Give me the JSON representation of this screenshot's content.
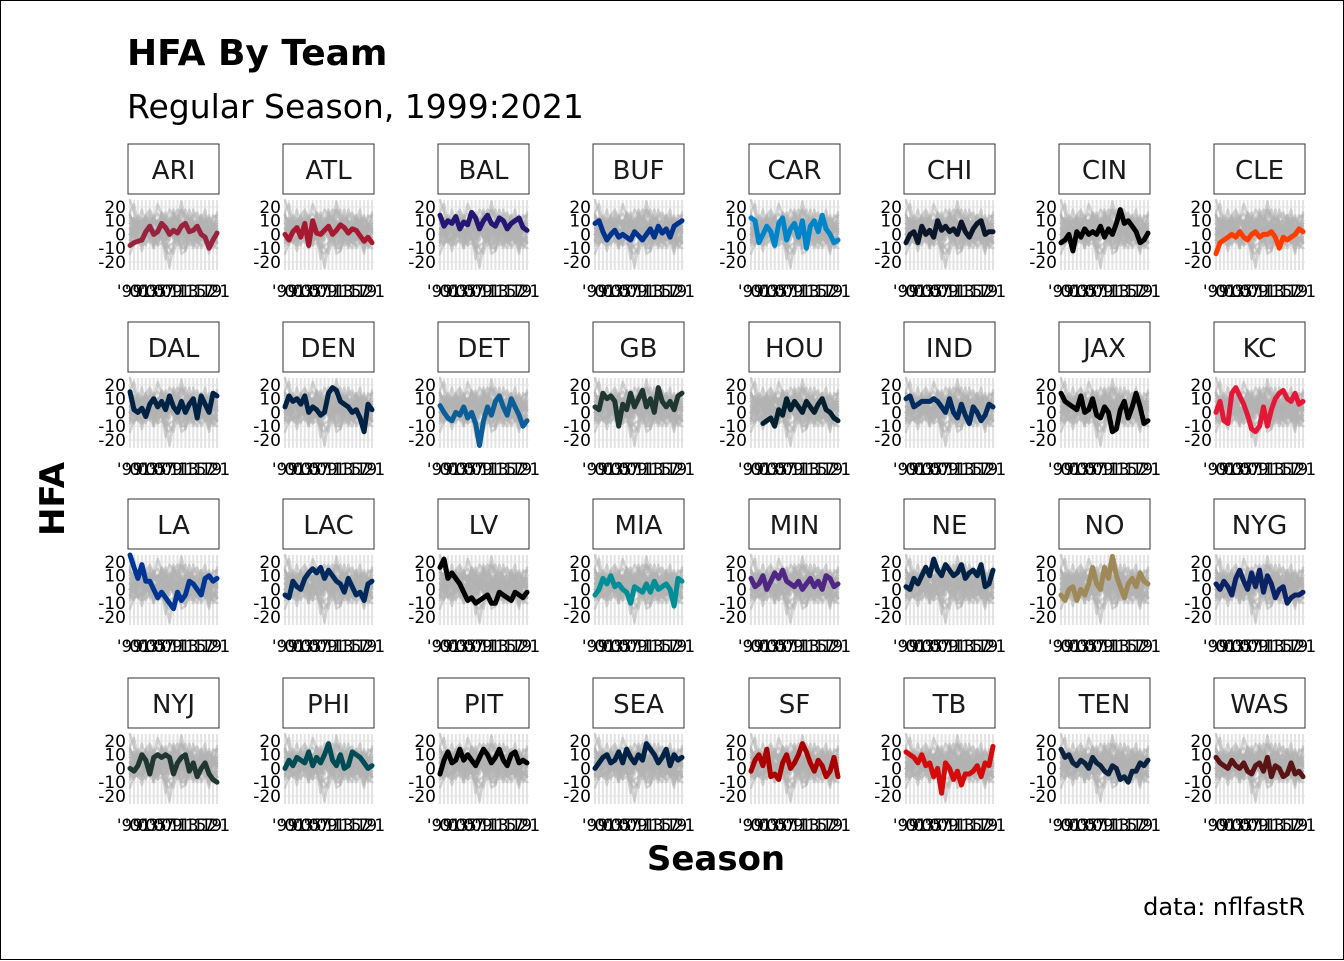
{
  "chart_data": {
    "type": "line",
    "title": "HFA By Team",
    "subtitle": "Regular Season, 1999:2021",
    "xlabel": "Season",
    "ylabel": "HFA",
    "caption": "data: nflfastR",
    "ylim": [
      -20,
      25
    ],
    "y_ticks": [
      "20",
      "10",
      "0",
      "-10",
      "-20"
    ],
    "y_tick_values": [
      20,
      10,
      0,
      -10,
      -20
    ],
    "x_ticks": [
      "'99",
      "'01",
      "'03",
      "'05",
      "'07",
      "'09",
      "'11",
      "'13",
      "'15",
      "'17",
      "'19",
      "'21"
    ],
    "x_tick_values": [
      1999,
      2001,
      2003,
      2005,
      2007,
      2009,
      2011,
      2013,
      2015,
      2017,
      2019,
      2021
    ],
    "seasons": [
      1999,
      2000,
      2001,
      2002,
      2003,
      2004,
      2005,
      2006,
      2007,
      2008,
      2009,
      2010,
      2011,
      2012,
      2013,
      2014,
      2015,
      2016,
      2017,
      2018,
      2019,
      2020,
      2021
    ],
    "background_series_color": "#b3b3b3",
    "grid": true,
    "legend": "none",
    "facets": [
      {
        "team": "ARI",
        "color": "#97233F",
        "values": [
          -8,
          -6,
          -5,
          -4,
          2,
          6,
          0,
          2,
          8,
          5,
          0,
          3,
          1,
          6,
          8,
          2,
          3,
          6,
          0,
          -2,
          -10,
          -4,
          1
        ]
      },
      {
        "team": "ATL",
        "color": "#A71930",
        "values": [
          0,
          -4,
          2,
          5,
          -2,
          8,
          -8,
          10,
          1,
          0,
          3,
          6,
          0,
          3,
          7,
          5,
          1,
          4,
          3,
          -1,
          -5,
          -2,
          -6
        ]
      },
      {
        "team": "BAL",
        "color": "#241773",
        "values": [
          14,
          6,
          10,
          8,
          13,
          4,
          9,
          7,
          16,
          12,
          4,
          10,
          14,
          8,
          6,
          12,
          10,
          4,
          8,
          10,
          12,
          5,
          3
        ]
      },
      {
        "team": "BUF",
        "color": "#00338D",
        "values": [
          8,
          10,
          2,
          -4,
          0,
          3,
          -2,
          0,
          -2,
          -4,
          2,
          -1,
          -4,
          0,
          4,
          -2,
          6,
          1,
          4,
          -2,
          6,
          8,
          10
        ]
      },
      {
        "team": "CAR",
        "color": "#0085CA",
        "values": [
          12,
          10,
          -6,
          0,
          6,
          2,
          -8,
          8,
          12,
          -4,
          4,
          8,
          -2,
          10,
          -10,
          6,
          10,
          2,
          14,
          4,
          0,
          -6,
          -4
        ]
      },
      {
        "team": "CHI",
        "color": "#0B162A",
        "values": [
          -6,
          0,
          2,
          -6,
          6,
          0,
          3,
          -2,
          10,
          3,
          6,
          2,
          4,
          0,
          9,
          2,
          -2,
          4,
          8,
          10,
          0,
          2,
          2
        ]
      },
      {
        "team": "CIN",
        "color": "#000000",
        "values": [
          -6,
          -4,
          0,
          -12,
          2,
          -2,
          4,
          0,
          2,
          0,
          6,
          -2,
          4,
          0,
          8,
          18,
          8,
          10,
          6,
          2,
          -6,
          -4,
          1
        ]
      },
      {
        "team": "CLE",
        "color": "#FF3C00",
        "values": [
          -14,
          -6,
          -4,
          -2,
          0,
          -2,
          2,
          -2,
          -4,
          0,
          2,
          -2,
          0,
          0,
          2,
          -2,
          -10,
          -2,
          -4,
          -2,
          0,
          4,
          2
        ]
      },
      {
        "team": "DAL",
        "color": "#002244",
        "values": [
          15,
          2,
          0,
          3,
          -3,
          6,
          10,
          4,
          8,
          2,
          12,
          4,
          0,
          8,
          0,
          6,
          10,
          -4,
          12,
          6,
          0,
          14,
          12
        ]
      },
      {
        "team": "DEN",
        "color": "#002244",
        "values": [
          4,
          12,
          8,
          10,
          6,
          12,
          0,
          4,
          2,
          -2,
          0,
          14,
          18,
          16,
          8,
          6,
          4,
          0,
          2,
          -4,
          -14,
          6,
          2
        ]
      },
      {
        "team": "DET",
        "color": "#0B5E98",
        "values": [
          5,
          0,
          -4,
          -6,
          0,
          -2,
          4,
          -4,
          0,
          -8,
          -24,
          -6,
          4,
          -2,
          8,
          12,
          4,
          -2,
          10,
          4,
          -2,
          -10,
          -6
        ]
      },
      {
        "team": "GB",
        "color": "#203731",
        "values": [
          4,
          2,
          14,
          10,
          12,
          8,
          -10,
          6,
          2,
          14,
          4,
          10,
          16,
          4,
          10,
          0,
          18,
          8,
          4,
          8,
          2,
          12,
          14
        ]
      },
      {
        "team": "HOU",
        "color": "#03202F",
        "values": [
          null,
          null,
          null,
          -8,
          -6,
          -4,
          -10,
          2,
          -2,
          10,
          2,
          8,
          4,
          0,
          8,
          4,
          0,
          6,
          10,
          2,
          0,
          -4,
          -6
        ]
      },
      {
        "team": "IND",
        "color": "#002C5F",
        "values": [
          10,
          12,
          4,
          6,
          8,
          8,
          8,
          10,
          8,
          4,
          0,
          10,
          0,
          -4,
          6,
          -2,
          -8,
          4,
          0,
          -6,
          -2,
          6,
          4
        ]
      },
      {
        "team": "JAX",
        "color": "#000000",
        "values": [
          14,
          8,
          6,
          4,
          2,
          12,
          0,
          2,
          10,
          -2,
          -4,
          4,
          0,
          -14,
          -12,
          2,
          8,
          -4,
          4,
          14,
          4,
          -8,
          -6
        ]
      },
      {
        "team": "KC",
        "color": "#E31837",
        "values": [
          0,
          8,
          -6,
          -8,
          14,
          18,
          12,
          6,
          -2,
          -12,
          -14,
          -10,
          4,
          -10,
          2,
          10,
          14,
          16,
          10,
          8,
          14,
          6,
          8
        ]
      },
      {
        "team": "LA",
        "color": "#003594",
        "values": [
          25,
          16,
          8,
          18,
          6,
          6,
          0,
          -6,
          -2,
          -6,
          -10,
          -14,
          -2,
          -8,
          -4,
          6,
          4,
          0,
          -4,
          8,
          10,
          6,
          8
        ]
      },
      {
        "team": "LAC",
        "color": "#002A5E",
        "values": [
          -4,
          -6,
          6,
          2,
          0,
          8,
          12,
          15,
          12,
          16,
          8,
          14,
          10,
          6,
          4,
          -2,
          8,
          2,
          -4,
          -2,
          -8,
          4,
          6
        ]
      },
      {
        "team": "LV",
        "color": "#000000",
        "values": [
          16,
          22,
          8,
          12,
          8,
          4,
          -2,
          -8,
          -6,
          -10,
          -8,
          -6,
          -4,
          -10,
          -10,
          -2,
          -4,
          -6,
          -8,
          -2,
          -4,
          -6,
          -2
        ]
      },
      {
        "team": "MIA",
        "color": "#008E97",
        "values": [
          -4,
          0,
          8,
          4,
          10,
          2,
          4,
          0,
          -2,
          -10,
          2,
          0,
          -2,
          4,
          -2,
          6,
          0,
          2,
          4,
          0,
          -12,
          8,
          6
        ]
      },
      {
        "team": "MIN",
        "color": "#4F2683",
        "values": [
          8,
          2,
          4,
          10,
          0,
          6,
          12,
          8,
          14,
          6,
          4,
          2,
          6,
          0,
          4,
          8,
          2,
          6,
          0,
          10,
          8,
          2,
          4
        ]
      },
      {
        "team": "NE",
        "color": "#002244",
        "values": [
          2,
          0,
          8,
          4,
          10,
          16,
          10,
          22,
          14,
          10,
          18,
          14,
          10,
          12,
          18,
          8,
          12,
          14,
          10,
          18,
          2,
          4,
          14
        ]
      },
      {
        "team": "NO",
        "color": "#9F8958",
        "values": [
          -4,
          -8,
          0,
          2,
          -8,
          0,
          -4,
          4,
          16,
          4,
          0,
          16,
          8,
          24,
          10,
          2,
          -6,
          4,
          8,
          2,
          12,
          6,
          4
        ]
      },
      {
        "team": "NYG",
        "color": "#0B2265",
        "values": [
          4,
          0,
          6,
          2,
          -4,
          8,
          14,
          6,
          0,
          12,
          2,
          14,
          -2,
          10,
          4,
          -6,
          0,
          2,
          -10,
          -6,
          -4,
          -4,
          -2
        ]
      },
      {
        "team": "NYJ",
        "color": "#203731",
        "values": [
          0,
          -2,
          2,
          10,
          6,
          -4,
          8,
          10,
          8,
          10,
          8,
          -4,
          4,
          8,
          10,
          -2,
          4,
          -6,
          0,
          4,
          -4,
          -8,
          -10
        ]
      },
      {
        "team": "PHI",
        "color": "#004C54",
        "values": [
          0,
          6,
          2,
          8,
          6,
          4,
          12,
          2,
          8,
          4,
          10,
          18,
          6,
          2,
          10,
          0,
          2,
          12,
          10,
          8,
          4,
          0,
          2
        ]
      },
      {
        "team": "PIT",
        "color": "#000000",
        "values": [
          -4,
          6,
          12,
          4,
          6,
          14,
          6,
          10,
          6,
          2,
          8,
          14,
          10,
          4,
          8,
          14,
          6,
          2,
          10,
          12,
          4,
          6,
          4
        ]
      },
      {
        "team": "SEA",
        "color": "#002244",
        "values": [
          0,
          4,
          8,
          10,
          4,
          6,
          12,
          4,
          14,
          8,
          4,
          10,
          6,
          18,
          14,
          10,
          4,
          8,
          14,
          2,
          10,
          6,
          8
        ]
      },
      {
        "team": "SF",
        "color": "#AA0000",
        "values": [
          -2,
          6,
          10,
          2,
          14,
          -6,
          -4,
          -8,
          4,
          10,
          0,
          4,
          10,
          18,
          12,
          4,
          -2,
          6,
          2,
          -6,
          -2,
          8,
          -6
        ]
      },
      {
        "team": "TB",
        "color": "#D50A0A",
        "values": [
          12,
          10,
          8,
          4,
          10,
          2,
          4,
          -6,
          0,
          -18,
          4,
          0,
          -8,
          -2,
          -12,
          -4,
          -4,
          -2,
          2,
          -6,
          4,
          2,
          16
        ]
      },
      {
        "team": "TEN",
        "color": "#0C2340",
        "values": [
          14,
          8,
          10,
          4,
          2,
          6,
          4,
          0,
          8,
          4,
          2,
          -2,
          -4,
          2,
          0,
          -8,
          -6,
          -10,
          -2,
          -2,
          4,
          2,
          6
        ]
      },
      {
        "team": "WAS",
        "color": "#5A1414",
        "values": [
          8,
          4,
          2,
          0,
          6,
          2,
          0,
          4,
          -2,
          -4,
          2,
          4,
          -2,
          8,
          -6,
          2,
          0,
          -6,
          -4,
          4,
          -4,
          -2,
          -6
        ]
      }
    ]
  }
}
